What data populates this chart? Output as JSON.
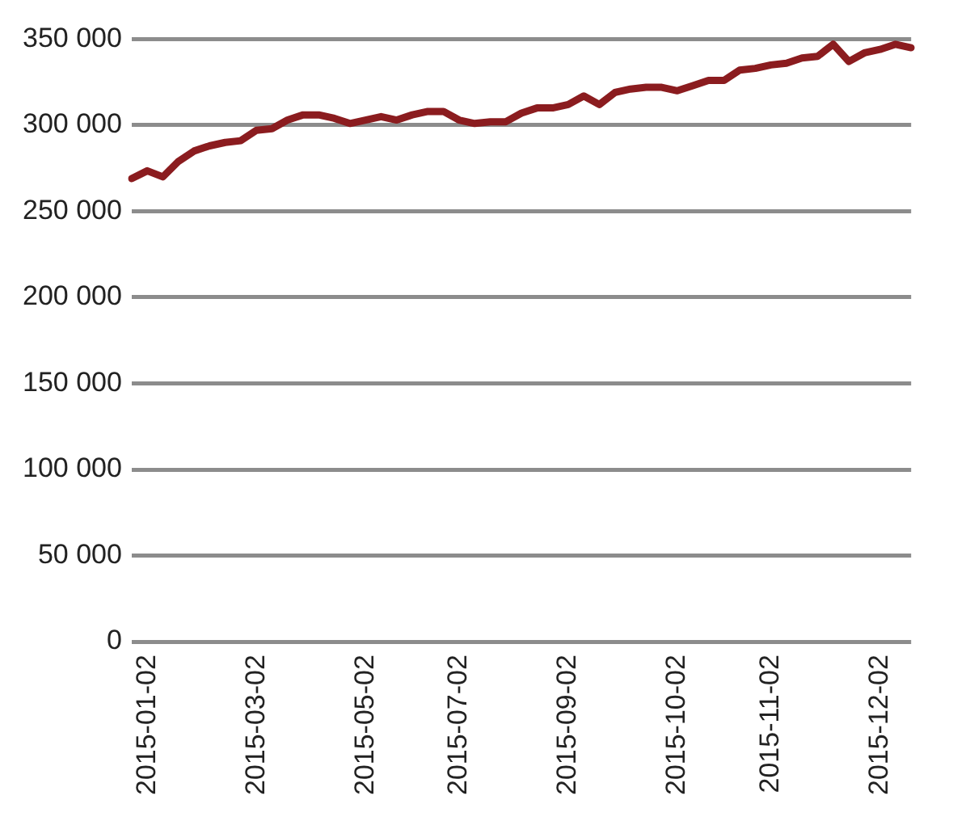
{
  "chart_data": {
    "type": "line",
    "categories": [
      null,
      "2015-01-02",
      null,
      null,
      null,
      null,
      null,
      null,
      "2015-03-02",
      null,
      null,
      null,
      null,
      null,
      null,
      "2015-05-02",
      null,
      null,
      null,
      null,
      null,
      "2015-07-02",
      null,
      null,
      null,
      null,
      null,
      null,
      "2015-09-02",
      null,
      null,
      null,
      null,
      null,
      null,
      "2015-10-02",
      null,
      null,
      null,
      null,
      null,
      "2015-11-02",
      null,
      null,
      null,
      null,
      null,
      null,
      "2015-12-02",
      null,
      null
    ],
    "series": [
      {
        "color": "#8b1c1f",
        "values": [
          269000,
          273500,
          270000,
          279000,
          285000,
          288000,
          290000,
          291000,
          297000,
          298000,
          303000,
          306000,
          306000,
          304000,
          301000,
          303000,
          305000,
          303000,
          306000,
          308000,
          308000,
          303000,
          301000,
          302000,
          302000,
          307000,
          310000,
          310000,
          312000,
          317000,
          312000,
          319000,
          321000,
          322000,
          322000,
          320000,
          323000,
          326000,
          326000,
          332000,
          333000,
          335000,
          336000,
          339000,
          340000,
          347000,
          337000,
          342000,
          344000,
          347000,
          345000
        ]
      }
    ],
    "ylim": [
      0,
      350000
    ],
    "yticks": [
      {
        "value": 0,
        "label": "0"
      },
      {
        "value": 50000,
        "label": "50 000"
      },
      {
        "value": 100000,
        "label": "100 000"
      },
      {
        "value": 150000,
        "label": "150 000"
      },
      {
        "value": 200000,
        "label": "200 000"
      },
      {
        "value": 250000,
        "label": "250 000"
      },
      {
        "value": 300000,
        "label": "300 000"
      },
      {
        "value": 350000,
        "label": "350 000"
      }
    ],
    "grid": "y",
    "legend": false,
    "marker": "none",
    "line_style": "solid"
  }
}
